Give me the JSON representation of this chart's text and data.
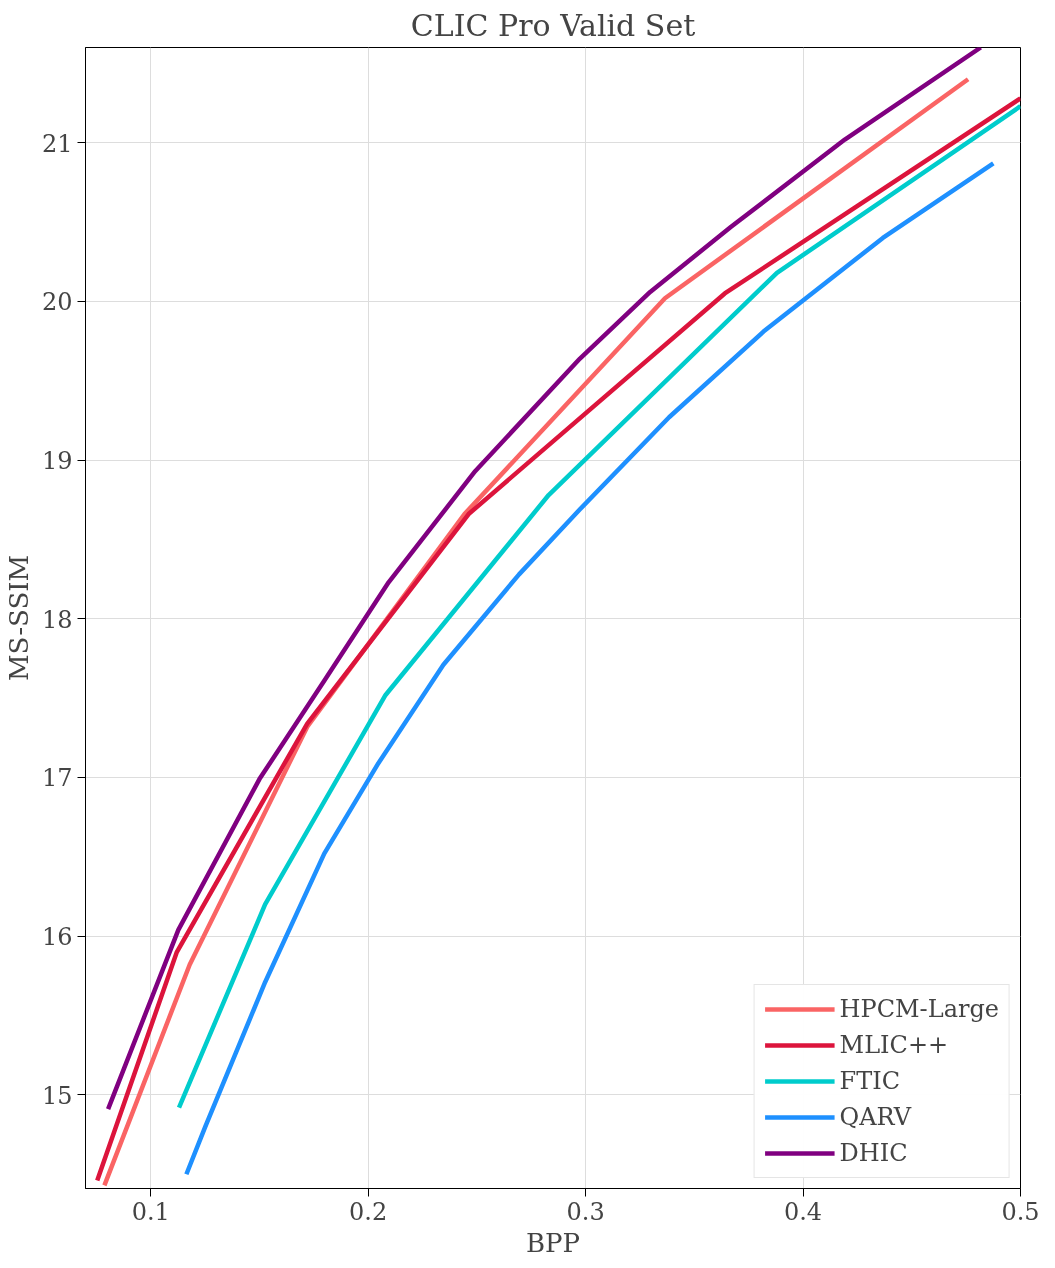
{
  "chart_data": {
    "type": "line",
    "title": "CLIC Pro Valid Set",
    "xlabel": "BPP",
    "ylabel": "MS-SSIM",
    "xlim": [
      0.07,
      0.5
    ],
    "ylim": [
      14.41,
      21.6
    ],
    "xticks": [
      0.1,
      0.2,
      0.3,
      0.4,
      0.5
    ],
    "yticks": [
      15,
      16,
      17,
      18,
      19,
      20,
      21
    ],
    "grid": true,
    "legend": "bottom right",
    "marker": "none",
    "line_style": "solid",
    "series": [
      {
        "name": "HPCM-Large",
        "color": "#fa6464",
        "x": [
          0.0787,
          0.1179,
          0.172,
          0.2443,
          0.3365,
          0.4759
        ],
        "values": [
          14.43,
          15.82,
          17.32,
          18.66,
          20.02,
          21.4
        ]
      },
      {
        "name": "MLIC++",
        "color": "#dc143c",
        "x": [
          0.0754,
          0.112,
          0.172,
          0.2462,
          0.364,
          0.5
        ],
        "values": [
          14.46,
          15.9,
          17.34,
          18.66,
          20.05,
          21.28
        ]
      },
      {
        "name": "FTIC",
        "color": "#00cccc",
        "x": [
          0.113,
          0.1526,
          0.208,
          0.283,
          0.388,
          0.5
        ],
        "values": [
          14.92,
          16.2,
          17.52,
          18.78,
          20.18,
          21.23
        ]
      },
      {
        "name": "QARV",
        "color": "#1e90ff",
        "x": [
          0.1164,
          0.1251,
          0.1526,
          0.1798,
          0.2047,
          0.2346,
          0.2694,
          0.2974,
          0.3384,
          0.3818,
          0.4367,
          0.4875
        ],
        "values": [
          14.5,
          14.8,
          15.71,
          16.52,
          17.09,
          17.71,
          18.28,
          18.69,
          19.27,
          19.81,
          20.4,
          20.87
        ]
      },
      {
        "name": "DHIC",
        "color": "#800080",
        "x": [
          0.0804,
          0.1127,
          0.15,
          0.1798,
          0.2094,
          0.2492,
          0.2974,
          0.3297,
          0.3669,
          0.4192,
          0.4817
        ],
        "values": [
          14.91,
          16.04,
          16.99,
          17.61,
          18.23,
          18.93,
          19.64,
          20.06,
          20.47,
          21.02,
          21.6
        ]
      }
    ]
  }
}
